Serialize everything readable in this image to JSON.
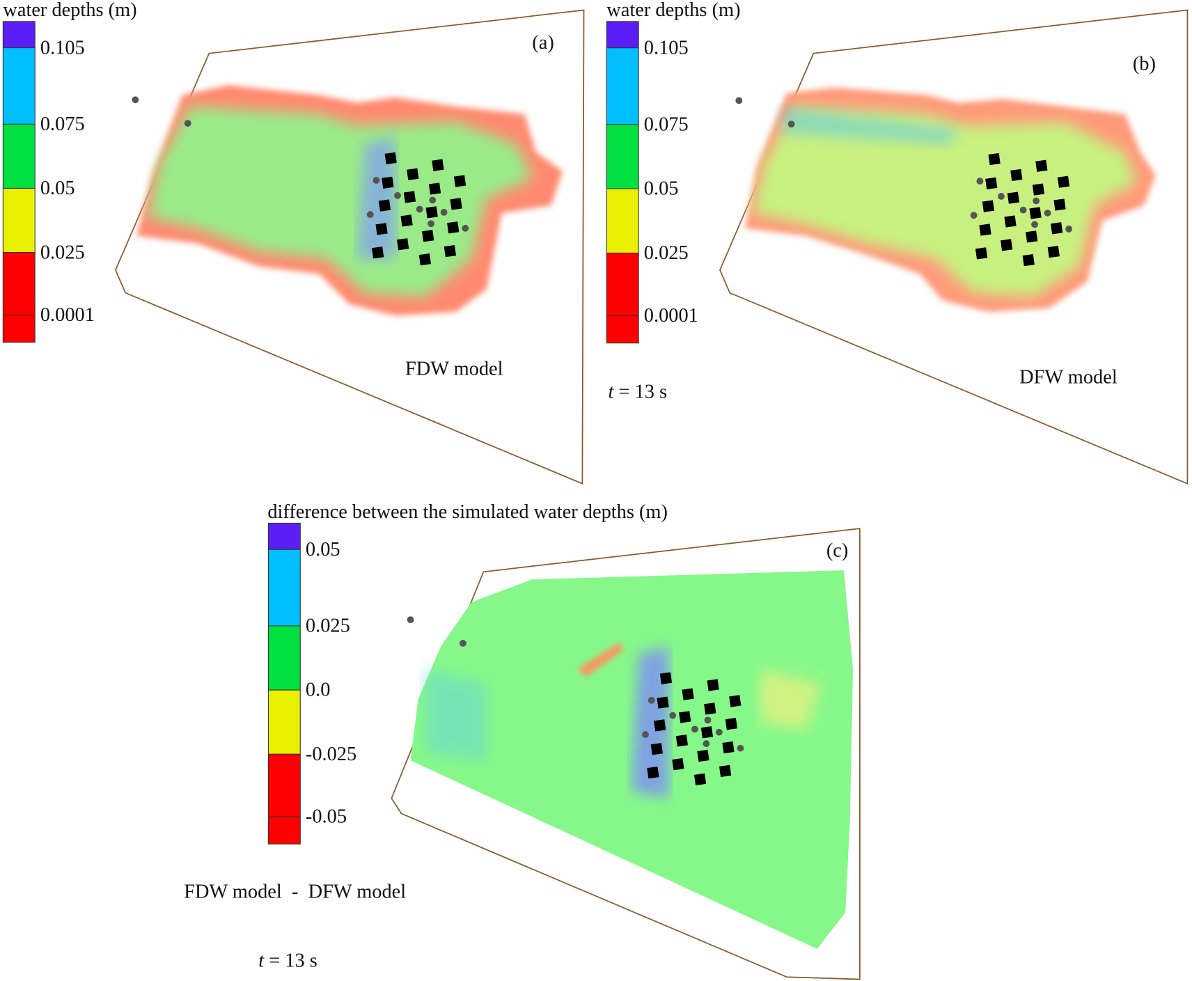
{
  "panels": [
    {
      "label": "(a)",
      "colorbar": {
        "title": "water depths (m)",
        "ticks": [
          "0.105",
          "0.075",
          "0.05",
          "0.025",
          "0.0001"
        ]
      },
      "model": "FDW model"
    },
    {
      "label": "(b)",
      "colorbar": {
        "title": "water depths (m)",
        "ticks": [
          "0.105",
          "0.075",
          "0.05",
          "0.025",
          "0.0001"
        ]
      },
      "model": "DFW model",
      "time": {
        "variable": "t",
        "rest": "= 13 s"
      }
    },
    {
      "label": "(c)",
      "colorbar": {
        "title": "difference between the simulated water depths (m)",
        "ticks": [
          "0.05",
          "0.025",
          "0.0",
          "-0.025",
          "-0.05"
        ]
      },
      "model": "FDW model  -  DFW model",
      "time": {
        "variable": "t",
        "rest": "= 13 s"
      }
    }
  ]
}
